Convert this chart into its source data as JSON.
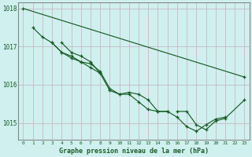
{
  "background_color": "#cff0ee",
  "grid_color": "#c8b8c8",
  "line_color": "#1a5c28",
  "text_color": "#1a5c28",
  "xlabel": "Graphe pression niveau de la mer (hPa)",
  "ylim": [
    1014.55,
    1018.15
  ],
  "xlim": [
    -0.5,
    23.5
  ],
  "yticks": [
    1015,
    1016,
    1017,
    1018
  ],
  "xticks": [
    0,
    1,
    2,
    3,
    4,
    5,
    6,
    7,
    8,
    9,
    10,
    11,
    12,
    13,
    14,
    15,
    16,
    17,
    18,
    19,
    20,
    21,
    22,
    23
  ],
  "series": [
    {
      "x": [
        0,
        23
      ],
      "y": [
        1018.0,
        1016.2
      ]
    },
    {
      "x": [
        1,
        2,
        3,
        4,
        5,
        6,
        7,
        8
      ],
      "y": [
        1017.5,
        1017.25,
        1017.1,
        1016.85,
        1016.75,
        1016.6,
        1016.45,
        1016.3
      ]
    },
    {
      "x": [
        3,
        4,
        5,
        6,
        7,
        8,
        9,
        10,
        11,
        12,
        13,
        14,
        15
      ],
      "y": [
        1017.1,
        1016.85,
        1016.7,
        1016.6,
        1016.55,
        1016.35,
        1015.9,
        1015.75,
        1015.8,
        1015.75,
        1015.6,
        1015.3,
        1015.3
      ]
    },
    {
      "x": [
        4,
        5,
        6,
        7,
        8,
        9,
        10,
        11,
        12,
        13,
        14,
        15,
        16,
        17,
        18,
        19,
        20,
        21
      ],
      "y": [
        1017.1,
        1016.85,
        1016.75,
        1016.6,
        1016.3,
        1015.85,
        1015.75,
        1015.75,
        1015.55,
        1015.35,
        1015.3,
        1015.3,
        1015.15,
        1014.9,
        1014.78,
        1014.95,
        1015.1,
        1015.15
      ]
    },
    {
      "x": [
        16,
        17,
        18,
        19,
        20,
        21,
        23
      ],
      "y": [
        1015.3,
        1015.3,
        1014.95,
        1014.82,
        1015.05,
        1015.12,
        1015.6
      ]
    }
  ]
}
